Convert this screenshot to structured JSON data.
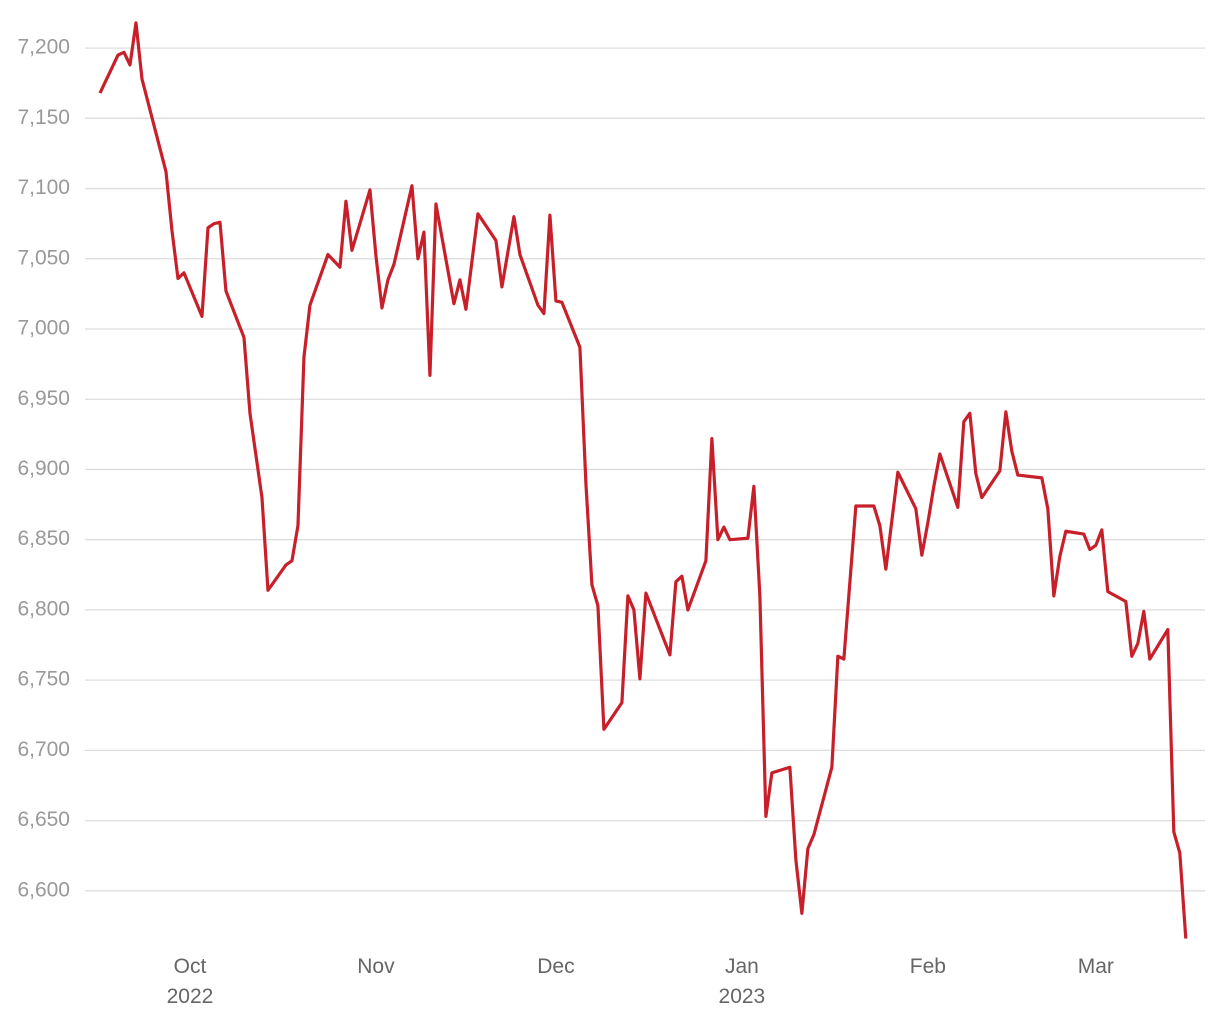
{
  "chart_data": {
    "type": "line",
    "x": [
      -15,
      -12,
      -11,
      -10,
      -9,
      -8,
      -4,
      -3,
      -2,
      -1,
      2,
      3,
      4,
      5,
      6,
      9,
      10,
      12,
      13,
      16,
      17,
      18,
      19,
      20,
      23,
      25,
      26,
      27,
      30,
      31,
      32,
      33,
      34,
      37,
      38,
      39,
      40,
      41,
      44,
      45,
      46,
      48,
      51,
      52,
      54,
      55,
      58,
      59,
      60,
      61,
      62,
      65,
      66,
      67,
      68,
      69,
      72,
      73,
      74,
      75,
      76,
      80,
      81,
      82,
      83,
      86,
      87,
      88,
      89,
      90,
      93,
      94,
      95,
      96,
      97,
      100,
      101,
      102,
      103,
      104,
      107,
      108,
      109,
      111,
      114,
      115,
      116,
      118,
      121,
      122,
      123,
      124,
      125,
      128,
      129,
      130,
      131,
      132,
      135,
      136,
      137,
      138,
      142,
      143,
      144,
      145,
      146,
      149,
      150,
      151,
      152,
      153,
      156,
      157,
      158,
      159,
      160,
      163,
      164,
      165,
      166
    ],
    "series": [
      {
        "color": "#c8202a",
        "values": [
          7168,
          7195,
          7197,
          7188,
          7218,
          7178,
          7112,
          7070,
          7036,
          7040,
          7009,
          7072,
          7075,
          7076,
          7027,
          6994,
          6940,
          6880,
          6814,
          6832,
          6835,
          6860,
          6980,
          7017,
          7053,
          7044,
          7091,
          7056,
          7099,
          7052,
          7015,
          7035,
          7046,
          7102,
          7050,
          7069,
          6967,
          7089,
          7018,
          7035,
          7014,
          7082,
          7063,
          7030,
          7080,
          7053,
          7017,
          7011,
          7081,
          7020,
          7019,
          6987,
          6890,
          6818,
          6803,
          6715,
          6734,
          6810,
          6800,
          6751,
          6812,
          6768,
          6820,
          6824,
          6800,
          6835,
          6922,
          6850,
          6859,
          6850,
          6851,
          6888,
          6810,
          6653,
          6684,
          6688,
          6622,
          6584,
          6630,
          6640,
          6688,
          6767,
          6765,
          6874,
          6874,
          6860,
          6829,
          6898,
          6872,
          6839,
          6862,
          6888,
          6911,
          6873,
          6934,
          6940,
          6897,
          6880,
          6899,
          6941,
          6913,
          6896,
          6894,
          6872,
          6810,
          6838,
          6856,
          6854,
          6843,
          6846,
          6857,
          6813,
          6806,
          6767,
          6776,
          6799,
          6765,
          6786,
          6642,
          6627,
          6566
        ]
      }
    ],
    "xlim": [
      -17.5,
      169.2
    ],
    "xticks": [
      {
        "value": 0,
        "label": "Oct\n2022"
      },
      {
        "value": 31,
        "label": "Nov"
      },
      {
        "value": 61,
        "label": "Dec"
      },
      {
        "value": 92,
        "label": "Jan\n2023"
      },
      {
        "value": 123,
        "label": "Feb"
      },
      {
        "value": 151,
        "label": "Mar"
      }
    ],
    "ylim": [
      6560,
      7220
    ],
    "yticks": [
      {
        "value": 6600,
        "label": "6,600"
      },
      {
        "value": 6650,
        "label": "6,650"
      },
      {
        "value": 6700,
        "label": "6,700"
      },
      {
        "value": 6750,
        "label": "6,750"
      },
      {
        "value": 6800,
        "label": "6,800"
      },
      {
        "value": 6850,
        "label": "6,850"
      },
      {
        "value": 6900,
        "label": "6,900"
      },
      {
        "value": 6950,
        "label": "6,950"
      },
      {
        "value": 7000,
        "label": "7,000"
      },
      {
        "value": 7050,
        "label": "7,050"
      },
      {
        "value": 7100,
        "label": "7,100"
      },
      {
        "value": 7150,
        "label": "7,150"
      },
      {
        "value": 7200,
        "label": "7,200"
      }
    ],
    "grid": true
  }
}
